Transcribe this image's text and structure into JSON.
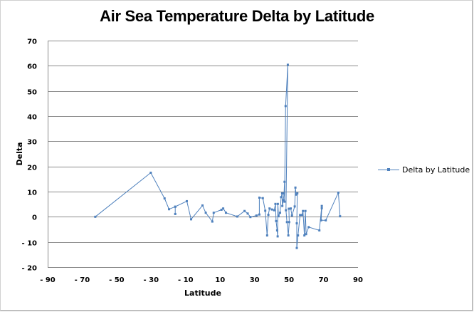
{
  "chart_data": {
    "type": "scatter",
    "title": "Air Sea Temperature Delta by Latitude",
    "xlabel": "Latitude",
    "ylabel": "Delta",
    "xlim": [
      -90,
      90
    ],
    "ylim": [
      -20,
      70
    ],
    "x_ticks": [
      -90,
      -70,
      -50,
      -30,
      -10,
      10,
      30,
      50,
      70,
      90
    ],
    "x_tick_labels": [
      "- 90",
      "- 70",
      "- 50",
      "- 30",
      "- 10",
      "10",
      "30",
      "50",
      "70",
      "90"
    ],
    "y_ticks": [
      -20,
      -10,
      0,
      10,
      20,
      30,
      40,
      50,
      60,
      70
    ],
    "y_tick_labels": [
      "- 20",
      "- 10",
      "0",
      "10",
      "20",
      "30",
      "40",
      "50",
      "60",
      "70"
    ],
    "grid": "horizontal",
    "legend_position": "right",
    "series": [
      {
        "name": "Delta by Latitude",
        "color": "#4f81bd",
        "marker": "square",
        "connected": true,
        "points": [
          [
            -62.4,
            0.0
          ],
          [
            -30.2,
            17.5
          ],
          [
            -22.2,
            7.3
          ],
          [
            -19.6,
            3.0
          ],
          [
            -16.0,
            4.0
          ],
          [
            -16.0,
            1.1
          ],
          [
            -16.0,
            4.0
          ],
          [
            -9.3,
            6.2
          ],
          [
            -6.8,
            -1.0
          ],
          [
            -0.2,
            4.5
          ],
          [
            1.7,
            1.6
          ],
          [
            5.5,
            -1.9
          ],
          [
            6.3,
            1.6
          ],
          [
            10.8,
            2.8
          ],
          [
            11.8,
            3.3
          ],
          [
            13.4,
            1.6
          ],
          [
            20.0,
            0.1
          ],
          [
            24.2,
            2.3
          ],
          [
            26.0,
            1.3
          ],
          [
            27.6,
            -0.1
          ],
          [
            31.1,
            0.5
          ],
          [
            32.8,
            0.9
          ],
          [
            32.8,
            7.6
          ],
          [
            34.8,
            7.4
          ],
          [
            36.2,
            2.4
          ],
          [
            37.3,
            -7.4
          ],
          [
            38.0,
            0.8
          ],
          [
            38.7,
            3.3
          ],
          [
            40.1,
            2.9
          ],
          [
            41.4,
            2.6
          ],
          [
            42.1,
            5.1
          ],
          [
            42.5,
            -1.7
          ],
          [
            43.1,
            -5.4
          ],
          [
            43.4,
            -7.8
          ],
          [
            43.5,
            5.1
          ],
          [
            43.9,
            0.2
          ],
          [
            44.8,
            1.6
          ],
          [
            45.4,
            7.8
          ],
          [
            46.0,
            9.3
          ],
          [
            46.1,
            4.3
          ],
          [
            46.7,
            6.6
          ],
          [
            47.1,
            9.3
          ],
          [
            47.4,
            13.9
          ],
          [
            47.4,
            6.0
          ],
          [
            48.0,
            44.0
          ],
          [
            49.3,
            60.4
          ],
          [
            48.2,
            2.6
          ],
          [
            48.8,
            -2.1
          ],
          [
            49.6,
            -7.4
          ],
          [
            50.1,
            -2.1
          ],
          [
            49.9,
            3.2
          ],
          [
            51.0,
            3.3
          ],
          [
            51.7,
            0.5
          ],
          [
            53.3,
            4.1
          ],
          [
            53.7,
            11.6
          ],
          [
            54.1,
            8.8
          ],
          [
            54.8,
            9.3
          ],
          [
            54.5,
            -2.6
          ],
          [
            54.5,
            -12.4
          ],
          [
            55.2,
            -7.4
          ],
          [
            56.4,
            0.7
          ],
          [
            57.5,
            0.7
          ],
          [
            58.1,
            2.3
          ],
          [
            58.9,
            -7.4
          ],
          [
            59.5,
            2.3
          ],
          [
            59.9,
            -6.9
          ],
          [
            61.4,
            -4.1
          ],
          [
            67.6,
            -5.4
          ],
          [
            69.0,
            4.3
          ],
          [
            69.0,
            3.4
          ],
          [
            68.6,
            -1.4
          ],
          [
            71.3,
            -1.4
          ],
          [
            78.6,
            9.6
          ],
          [
            79.6,
            0.2
          ]
        ]
      }
    ]
  }
}
